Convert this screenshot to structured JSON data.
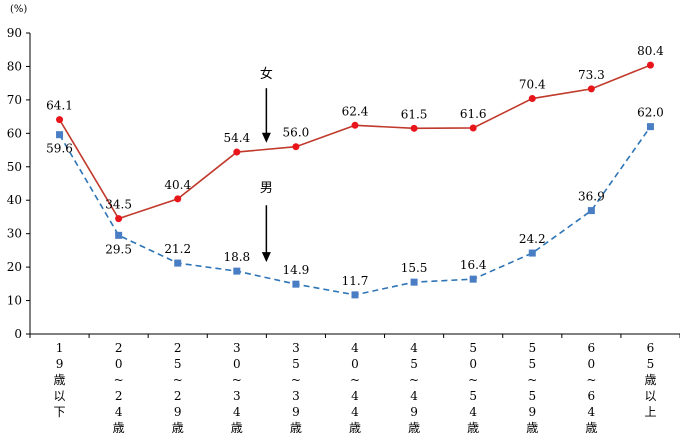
{
  "chart_data": {
    "type": "line",
    "unit_label": "(%)",
    "ylim": [
      0,
      90
    ],
    "yticks": [
      0,
      10,
      20,
      30,
      40,
      50,
      60,
      70,
      80,
      90
    ],
    "grid": false,
    "categories": [
      "19歳以下",
      "20~24歳",
      "25~29歳",
      "30~34歳",
      "35~39歳",
      "40~44歳",
      "45~49歳",
      "50~54歳",
      "55~59歳",
      "60~64歳",
      "65歳以上"
    ],
    "category_lines": [
      [
        "1",
        "9",
        "歳",
        "以",
        "下"
      ],
      [
        "2",
        "0",
        "~",
        "2",
        "4",
        "歳"
      ],
      [
        "2",
        "5",
        "~",
        "2",
        "9",
        "歳"
      ],
      [
        "3",
        "0",
        "~",
        "3",
        "4",
        "歳"
      ],
      [
        "3",
        "5",
        "~",
        "3",
        "9",
        "歳"
      ],
      [
        "4",
        "0",
        "~",
        "4",
        "4",
        "歳"
      ],
      [
        "4",
        "5",
        "~",
        "4",
        "9",
        "歳"
      ],
      [
        "5",
        "0",
        "~",
        "5",
        "4",
        "歳"
      ],
      [
        "5",
        "5",
        "~",
        "5",
        "9",
        "歳"
      ],
      [
        "6",
        "0",
        "~",
        "6",
        "4",
        "歳"
      ],
      [
        "6",
        "5",
        "歳",
        "以",
        "上"
      ]
    ],
    "series": [
      {
        "name": "女",
        "color": "#c0392b",
        "marker_color": "#e8151b",
        "line_style": "solid",
        "marker": "circle",
        "values": [
          64.1,
          34.5,
          40.4,
          54.4,
          56.0,
          62.4,
          61.5,
          61.6,
          70.4,
          73.3,
          80.4
        ],
        "value_labels": [
          "64.1",
          "34.5",
          "40.4",
          "54.4",
          "56.0",
          "62.4",
          "61.5",
          "61.6",
          "70.4",
          "73.3",
          "80.4"
        ]
      },
      {
        "name": "男",
        "color": "#2e75b6",
        "marker_color": "#4a7ec4",
        "line_style": "dashed",
        "marker": "square",
        "values": [
          59.6,
          29.5,
          21.2,
          18.8,
          14.9,
          11.7,
          15.5,
          16.4,
          24.2,
          36.9,
          62.0
        ],
        "value_labels": [
          "59.6",
          "29.5",
          "21.2",
          "18.8",
          "14.9",
          "11.7",
          "15.5",
          "16.4",
          "24.2",
          "36.9",
          "62.0"
        ]
      }
    ]
  }
}
